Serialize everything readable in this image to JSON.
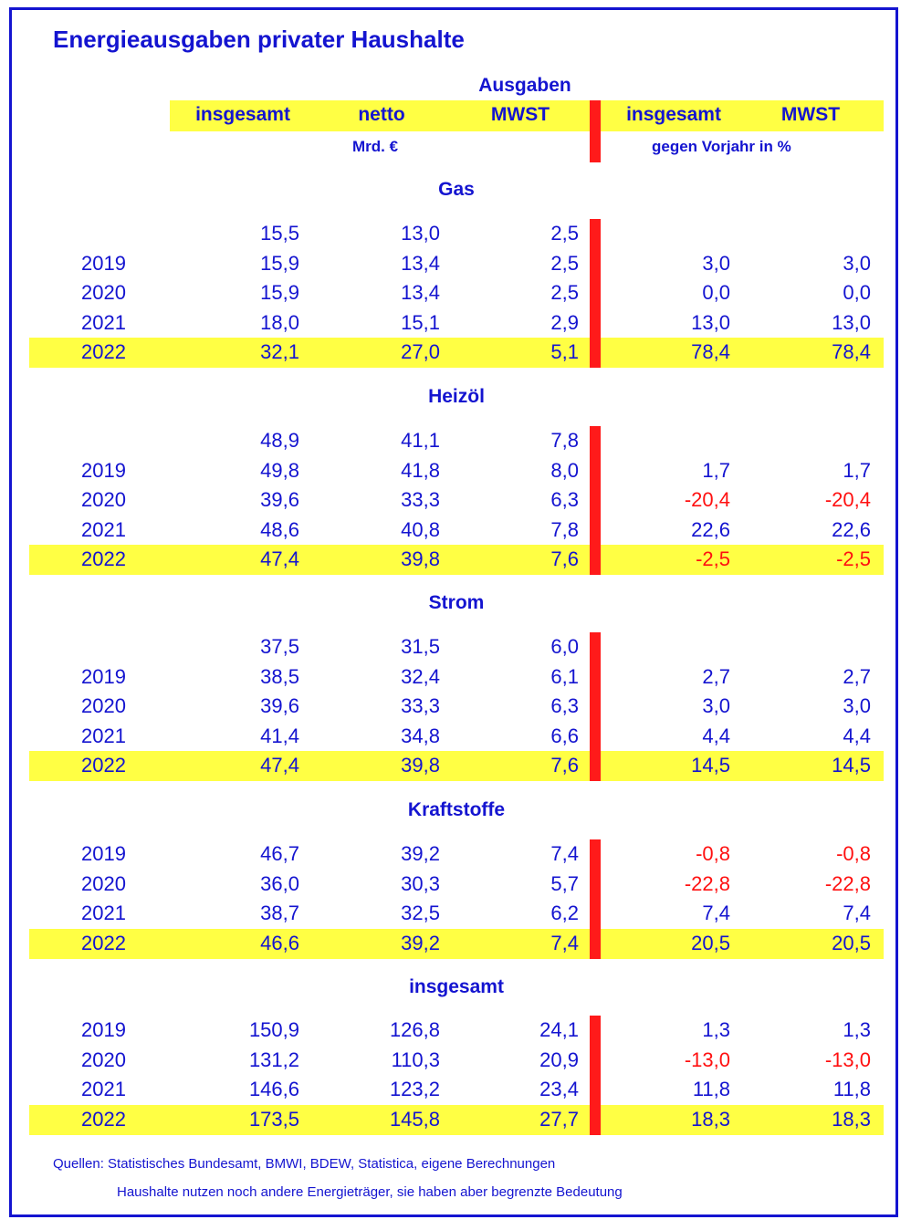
{
  "title": "Energieausgaben privater Haushalte",
  "header": {
    "group": "Ausgaben",
    "columns": [
      "insgesamt",
      "netto",
      "MWST",
      "insgesamt",
      "MWST"
    ],
    "unit_left": "Mrd. €",
    "unit_right": "gegen Vorjahr in %"
  },
  "chart_data": {
    "type": "table",
    "title": "Energieausgaben privater Haushalte",
    "columns": [
      "",
      "insgesamt",
      "netto",
      "MWST",
      "insgesamt",
      "MWST"
    ],
    "sections": [
      {
        "name": "Gas",
        "rows": [
          {
            "year": "",
            "insgesamt": "15,5",
            "netto": "13,0",
            "mwst": "2,5",
            "pct_insgesamt": "",
            "pct_mwst": ""
          },
          {
            "year": "2019",
            "insgesamt": "15,9",
            "netto": "13,4",
            "mwst": "2,5",
            "pct_insgesamt": "3,0",
            "pct_mwst": "3,0"
          },
          {
            "year": "2020",
            "insgesamt": "15,9",
            "netto": "13,4",
            "mwst": "2,5",
            "pct_insgesamt": "0,0",
            "pct_mwst": "0,0"
          },
          {
            "year": "2021",
            "insgesamt": "18,0",
            "netto": "15,1",
            "mwst": "2,9",
            "pct_insgesamt": "13,0",
            "pct_mwst": "13,0"
          },
          {
            "year": "2022",
            "insgesamt": "32,1",
            "netto": "27,0",
            "mwst": "5,1",
            "pct_insgesamt": "78,4",
            "pct_mwst": "78,4",
            "highlight": true
          }
        ]
      },
      {
        "name": "Heizöl",
        "rows": [
          {
            "year": "",
            "insgesamt": "48,9",
            "netto": "41,1",
            "mwst": "7,8",
            "pct_insgesamt": "",
            "pct_mwst": ""
          },
          {
            "year": "2019",
            "insgesamt": "49,8",
            "netto": "41,8",
            "mwst": "8,0",
            "pct_insgesamt": "1,7",
            "pct_mwst": "1,7"
          },
          {
            "year": "2020",
            "insgesamt": "39,6",
            "netto": "33,3",
            "mwst": "6,3",
            "pct_insgesamt": "-20,4",
            "pct_mwst": "-20,4"
          },
          {
            "year": "2021",
            "insgesamt": "48,6",
            "netto": "40,8",
            "mwst": "7,8",
            "pct_insgesamt": "22,6",
            "pct_mwst": "22,6"
          },
          {
            "year": "2022",
            "insgesamt": "47,4",
            "netto": "39,8",
            "mwst": "7,6",
            "pct_insgesamt": "-2,5",
            "pct_mwst": "-2,5",
            "highlight": true
          }
        ]
      },
      {
        "name": "Strom",
        "rows": [
          {
            "year": "",
            "insgesamt": "37,5",
            "netto": "31,5",
            "mwst": "6,0",
            "pct_insgesamt": "",
            "pct_mwst": ""
          },
          {
            "year": "2019",
            "insgesamt": "38,5",
            "netto": "32,4",
            "mwst": "6,1",
            "pct_insgesamt": "2,7",
            "pct_mwst": "2,7"
          },
          {
            "year": "2020",
            "insgesamt": "39,6",
            "netto": "33,3",
            "mwst": "6,3",
            "pct_insgesamt": "3,0",
            "pct_mwst": "3,0"
          },
          {
            "year": "2021",
            "insgesamt": "41,4",
            "netto": "34,8",
            "mwst": "6,6",
            "pct_insgesamt": "4,4",
            "pct_mwst": "4,4"
          },
          {
            "year": "2022",
            "insgesamt": "47,4",
            "netto": "39,8",
            "mwst": "7,6",
            "pct_insgesamt": "14,5",
            "pct_mwst": "14,5",
            "highlight": true
          }
        ]
      },
      {
        "name": "Kraftstoffe",
        "rows": [
          {
            "year": "2019",
            "insgesamt": "46,7",
            "netto": "39,2",
            "mwst": "7,4",
            "pct_insgesamt": "-0,8",
            "pct_mwst": "-0,8"
          },
          {
            "year": "2020",
            "insgesamt": "36,0",
            "netto": "30,3",
            "mwst": "5,7",
            "pct_insgesamt": "-22,8",
            "pct_mwst": "-22,8"
          },
          {
            "year": "2021",
            "insgesamt": "38,7",
            "netto": "32,5",
            "mwst": "6,2",
            "pct_insgesamt": "7,4",
            "pct_mwst": "7,4"
          },
          {
            "year": "2022",
            "insgesamt": "46,6",
            "netto": "39,2",
            "mwst": "7,4",
            "pct_insgesamt": "20,5",
            "pct_mwst": "20,5",
            "highlight": true
          }
        ]
      },
      {
        "name": "insgesamt",
        "rows": [
          {
            "year": "2019",
            "insgesamt": "150,9",
            "netto": "126,8",
            "mwst": "24,1",
            "pct_insgesamt": "1,3",
            "pct_mwst": "1,3"
          },
          {
            "year": "2020",
            "insgesamt": "131,2",
            "netto": "110,3",
            "mwst": "20,9",
            "pct_insgesamt": "-13,0",
            "pct_mwst": "-13,0"
          },
          {
            "year": "2021",
            "insgesamt": "146,6",
            "netto": "123,2",
            "mwst": "23,4",
            "pct_insgesamt": "11,8",
            "pct_mwst": "11,8"
          },
          {
            "year": "2022",
            "insgesamt": "173,5",
            "netto": "145,8",
            "mwst": "27,7",
            "pct_insgesamt": "18,3",
            "pct_mwst": "18,3",
            "highlight": true
          }
        ]
      }
    ]
  },
  "colors": {
    "text": "#1414d0",
    "negative": "#ff1010",
    "highlight": "#ffff44",
    "divider": "#ff1a1a",
    "frame": "#1414d0"
  },
  "footer": {
    "sources": "Quellen: Statistisches Bundesamt, BMWI, BDEW, Statistica, eigene Berechnungen",
    "note": "Haushalte nutzen noch andere Energieträger, sie haben aber begrenzte Bedeutung"
  }
}
